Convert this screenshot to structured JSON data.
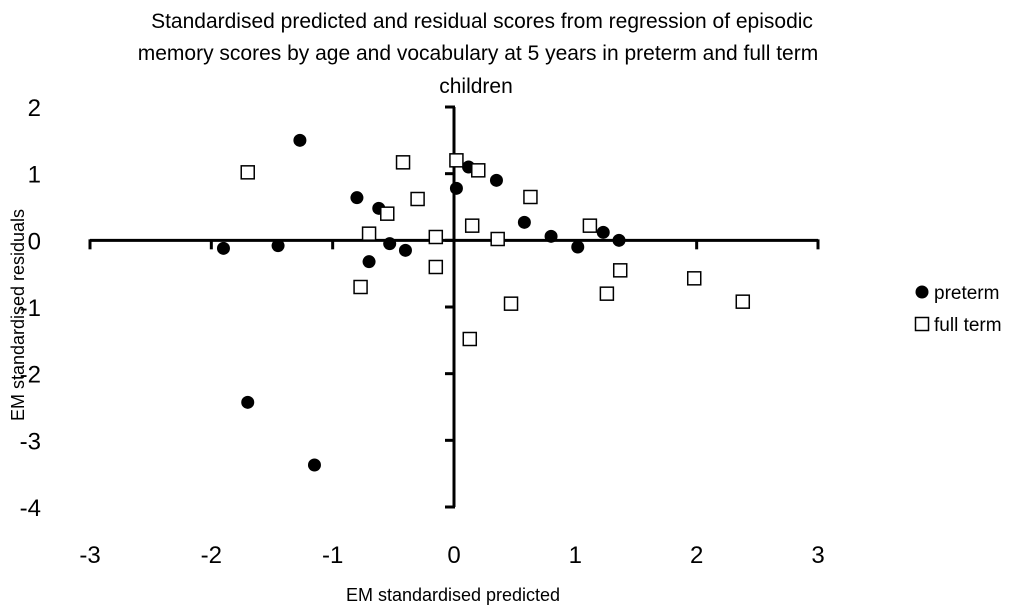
{
  "chart_data": {
    "type": "scatter",
    "title_lines": [
      "Standardised predicted and residual scores from regression of episodic",
      "memory scores by age and vocabulary at 5 years in preterm and full term",
      "children"
    ],
    "xlabel": "EM standardised predicted",
    "ylabel": "EM standardised residuals",
    "xlim": [
      -3,
      3
    ],
    "ylim": [
      -4,
      2
    ],
    "x_ticks": [
      "-3",
      "-2",
      "-1",
      "0",
      "1",
      "2",
      "3"
    ],
    "y_ticks": [
      "2",
      "1",
      "0",
      "-1",
      "-2",
      "-3",
      "-4"
    ],
    "grid": false,
    "legend_position": "right",
    "series": [
      {
        "name": "preterm",
        "marker": "filled-circle",
        "color": "#000000",
        "points": [
          [
            -1.9,
            -0.12
          ],
          [
            -1.45,
            -0.08
          ],
          [
            -1.27,
            1.5
          ],
          [
            -1.7,
            -2.43
          ],
          [
            -1.15,
            -3.37
          ],
          [
            -0.8,
            0.64
          ],
          [
            -0.62,
            0.48
          ],
          [
            -0.53,
            -0.05
          ],
          [
            -0.7,
            -0.32
          ],
          [
            -0.4,
            -0.15
          ],
          [
            0.02,
            0.78
          ],
          [
            0.12,
            1.1
          ],
          [
            0.35,
            0.9
          ],
          [
            0.58,
            0.27
          ],
          [
            0.8,
            0.06
          ],
          [
            1.02,
            -0.1
          ],
          [
            1.23,
            0.12
          ],
          [
            1.36,
            0.0
          ]
        ]
      },
      {
        "name": "full term",
        "marker": "open-square",
        "color": "#000000",
        "points": [
          [
            -1.7,
            1.02
          ],
          [
            -0.42,
            1.17
          ],
          [
            -0.3,
            0.62
          ],
          [
            -0.55,
            0.4
          ],
          [
            -0.7,
            0.1
          ],
          [
            -0.77,
            -0.7
          ],
          [
            -0.15,
            0.05
          ],
          [
            -0.15,
            -0.4
          ],
          [
            0.02,
            1.2
          ],
          [
            0.2,
            1.05
          ],
          [
            0.15,
            0.22
          ],
          [
            0.36,
            0.02
          ],
          [
            0.63,
            0.65
          ],
          [
            0.47,
            -0.95
          ],
          [
            0.13,
            -1.48
          ],
          [
            1.12,
            0.22
          ],
          [
            1.37,
            -0.45
          ],
          [
            1.26,
            -0.8
          ],
          [
            1.98,
            -0.57
          ],
          [
            2.38,
            -0.92
          ]
        ]
      }
    ]
  }
}
